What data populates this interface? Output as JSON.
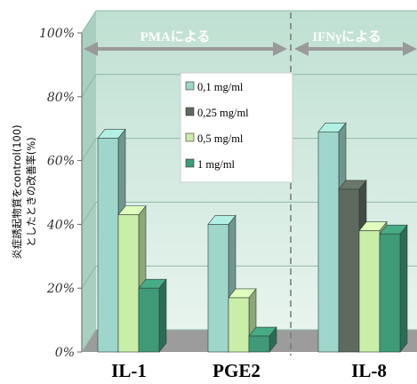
{
  "chart_data": {
    "type": "bar",
    "ylabel": [
      "炎症誘起物質をcontrol(100)",
      "としたときの改善率(%)"
    ],
    "ylim": [
      0,
      100
    ],
    "yticks": [
      "0%",
      "20%",
      "40%",
      "60%",
      "80%",
      "100%"
    ],
    "grid": true,
    "legend_position": "center-left",
    "groups": [
      {
        "category": "IL-1",
        "series": [
          "0,1 mg/ml",
          "0,5 mg/ml",
          "1 mg/ml"
        ],
        "values": [
          67,
          43,
          20
        ]
      },
      {
        "category": "PGE2",
        "series": [
          "0,1 mg/ml",
          "0,5 mg/ml",
          "1 mg/ml"
        ],
        "values": [
          40,
          17,
          5
        ]
      },
      {
        "category": "IL-8",
        "series": [
          "0,1 mg/ml",
          "0,25 mg/ml",
          "0,5 mg/ml",
          "1 mg/ml"
        ],
        "values": [
          69,
          51,
          38,
          37
        ]
      }
    ],
    "series": [
      {
        "name": "0,1 mg/ml",
        "color": "#9fd6cc"
      },
      {
        "name": "0,25 mg/ml",
        "color": "#5f6a5f"
      },
      {
        "name": "0,5 mg/ml",
        "color": "#c9eea8"
      },
      {
        "name": "1 mg/ml",
        "color": "#3f9a78"
      }
    ],
    "regions": [
      {
        "label": "PMAによる"
      },
      {
        "label": "IFNγによる"
      }
    ]
  }
}
